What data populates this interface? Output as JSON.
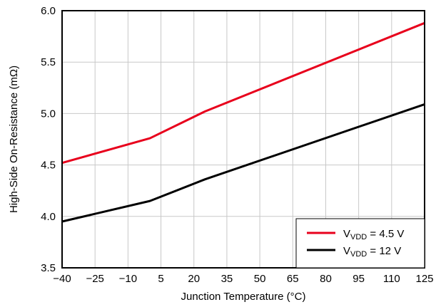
{
  "chart_data": {
    "type": "line",
    "xlabel": "Junction Temperature (°C)",
    "ylabel": "High-Side On-Resistance (mΩ)",
    "xlim": [
      -40,
      125
    ],
    "ylim": [
      3.5,
      6.0
    ],
    "x_ticks": [
      -40,
      -25,
      -10,
      5,
      20,
      35,
      50,
      65,
      80,
      95,
      110,
      125
    ],
    "x_tick_labels": [
      "−40",
      "−25",
      "−10",
      "5",
      "20",
      "35",
      "50",
      "65",
      "80",
      "95",
      "110",
      "125"
    ],
    "y_ticks": [
      3.5,
      4.0,
      4.5,
      5.0,
      5.5,
      6.0
    ],
    "y_tick_labels": [
      "3.5",
      "4.0",
      "4.5",
      "5.0",
      "5.5",
      "6.0"
    ],
    "grid": true,
    "legend_position": "bottom-right",
    "series": [
      {
        "name": "V_VDD = 4.5 V",
        "legend_main": "V",
        "legend_sub": "VDD",
        "legend_rest": " = 4.5 V",
        "color": "#e8001c",
        "points": [
          [
            -40,
            4.52
          ],
          [
            0,
            4.76
          ],
          [
            25,
            5.02
          ],
          [
            125,
            5.88
          ]
        ]
      },
      {
        "name": "V_VDD = 12 V",
        "legend_main": "V",
        "legend_sub": "VDD",
        "legend_rest": " = 12 V",
        "color": "#000000",
        "points": [
          [
            -40,
            3.95
          ],
          [
            0,
            4.15
          ],
          [
            25,
            4.36
          ],
          [
            125,
            5.09
          ]
        ]
      }
    ]
  }
}
